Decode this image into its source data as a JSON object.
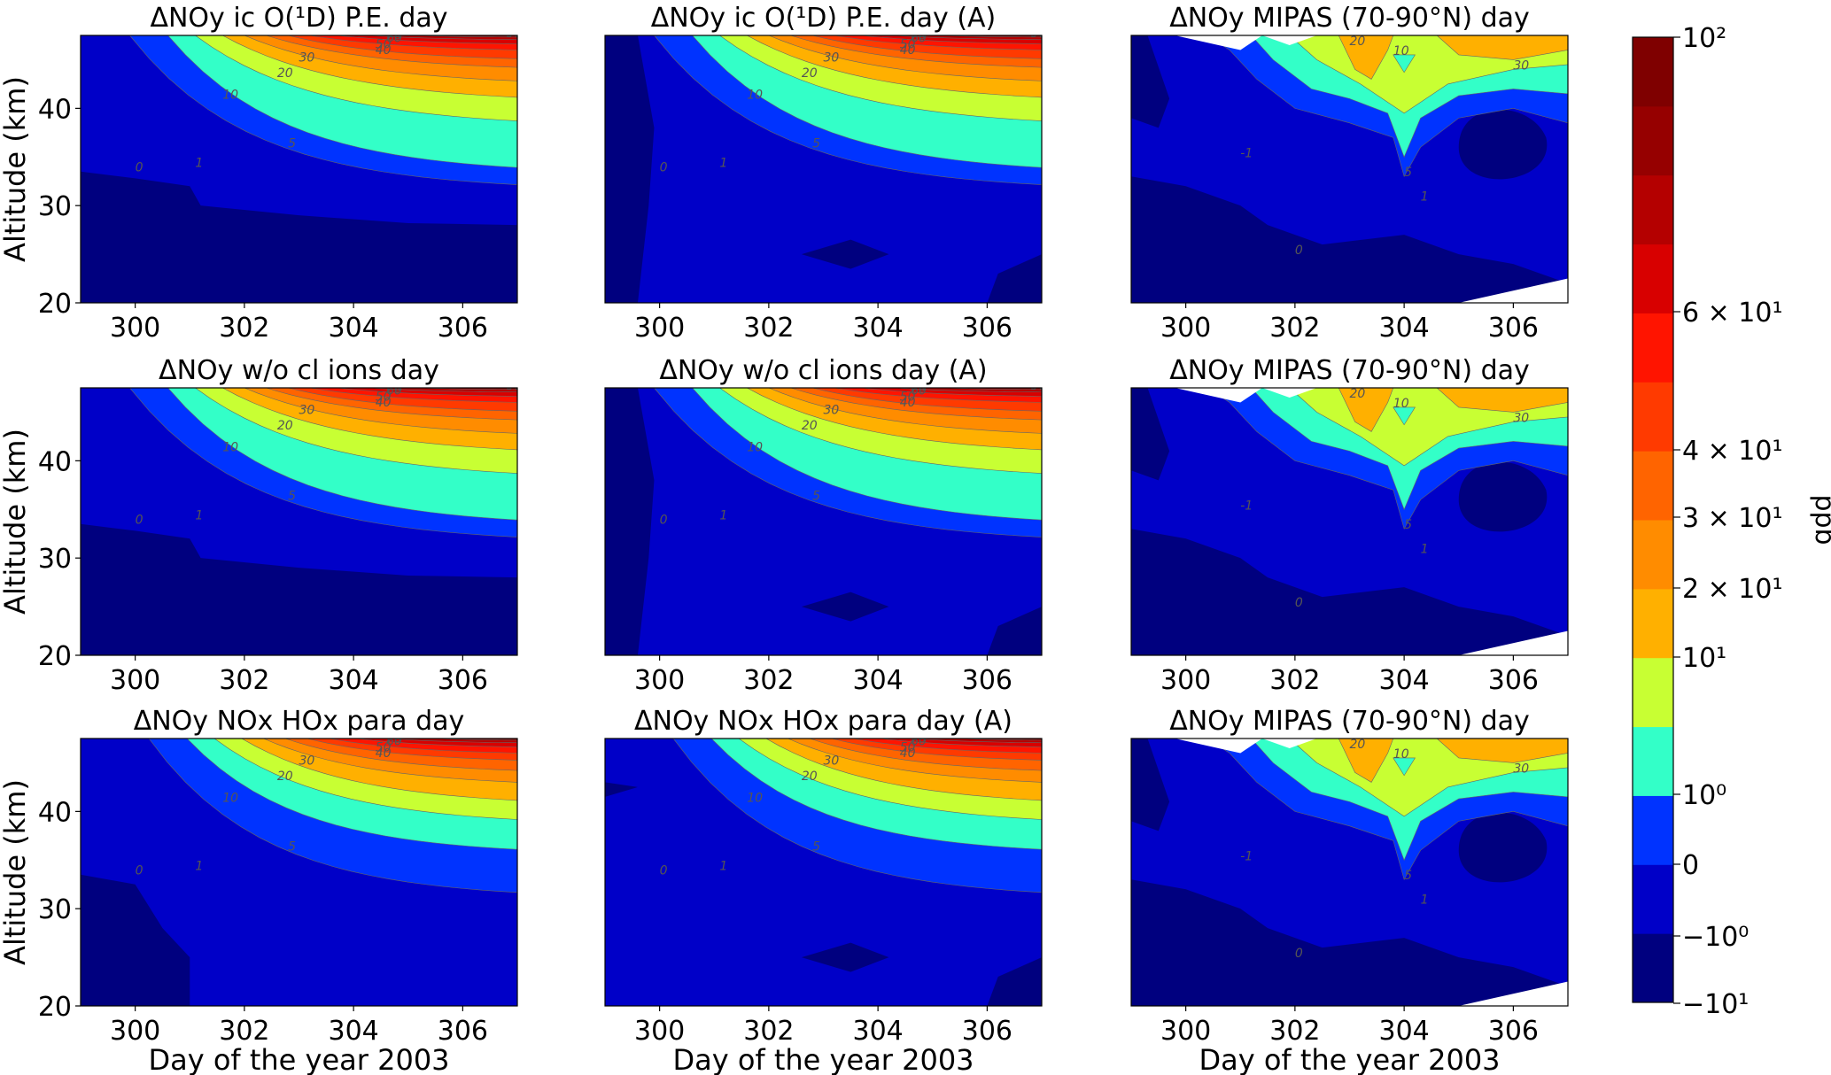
{
  "chart_data": {
    "type": "contour",
    "panels": [
      {
        "title": "ΔNOy ic O(¹D) P.E. day",
        "kind": "model",
        "variant": "icO1D"
      },
      {
        "title": "ΔNOy ic O(¹D) P.E. day (A)",
        "kind": "model",
        "variant": "icO1D_A"
      },
      {
        "title": "ΔNOy MIPAS (70-90°N) day",
        "kind": "mipas"
      },
      {
        "title": "ΔNOy w/o cl ions day",
        "kind": "model",
        "variant": "wocl"
      },
      {
        "title": "ΔNOy w/o cl ions day (A)",
        "kind": "model",
        "variant": "wocl_A"
      },
      {
        "title": "ΔNOy MIPAS (70-90°N) day",
        "kind": "mipas"
      },
      {
        "title": "ΔNOy NOx HOx para day",
        "kind": "model",
        "variant": "para"
      },
      {
        "title": "ΔNOy NOx HOx para day (A)",
        "kind": "model",
        "variant": "para_A"
      },
      {
        "title": "ΔNOy MIPAS (70-90°N) day",
        "kind": "mipas"
      }
    ],
    "x_ticks": [
      "300",
      "302",
      "304",
      "306"
    ],
    "x_tick_values": [
      300,
      302,
      304,
      306
    ],
    "y_ticks": [
      "20",
      "30",
      "40"
    ],
    "y_tick_values": [
      20,
      30,
      40
    ],
    "xlim": [
      299,
      307
    ],
    "ylim": [
      20,
      47.5
    ],
    "xlabel": "Day of the year 2003",
    "ylabel": "Altitude (km)",
    "contour_levels": [
      -10,
      -1,
      0,
      1,
      5,
      10,
      20,
      30,
      40,
      50,
      60,
      70,
      80,
      90,
      100
    ],
    "level_labels_model": [
      "0",
      "1",
      "5",
      "10",
      "20",
      "30",
      "40",
      "50",
      "60",
      "70",
      "80",
      "90"
    ],
    "level_labels_mipas": [
      "0",
      "-1",
      "1",
      "5",
      "10",
      "20",
      "30"
    ],
    "colorbar": {
      "label": "ppb",
      "ticks": [
        "10²",
        "6 × 10¹",
        "4 × 10¹",
        "3 × 10¹",
        "2 × 10¹",
        "10¹",
        "10⁰",
        "0",
        "−10⁰",
        "−10¹"
      ],
      "colors": [
        "#00007f",
        "#0000c8",
        "#0033ff",
        "#33ffc8",
        "#c8ff33",
        "#ffb000",
        "#ff8c00",
        "#ff6400",
        "#ff3a00",
        "#ff1400",
        "#d80000",
        "#b40000",
        "#960000",
        "#7f0000"
      ]
    }
  }
}
